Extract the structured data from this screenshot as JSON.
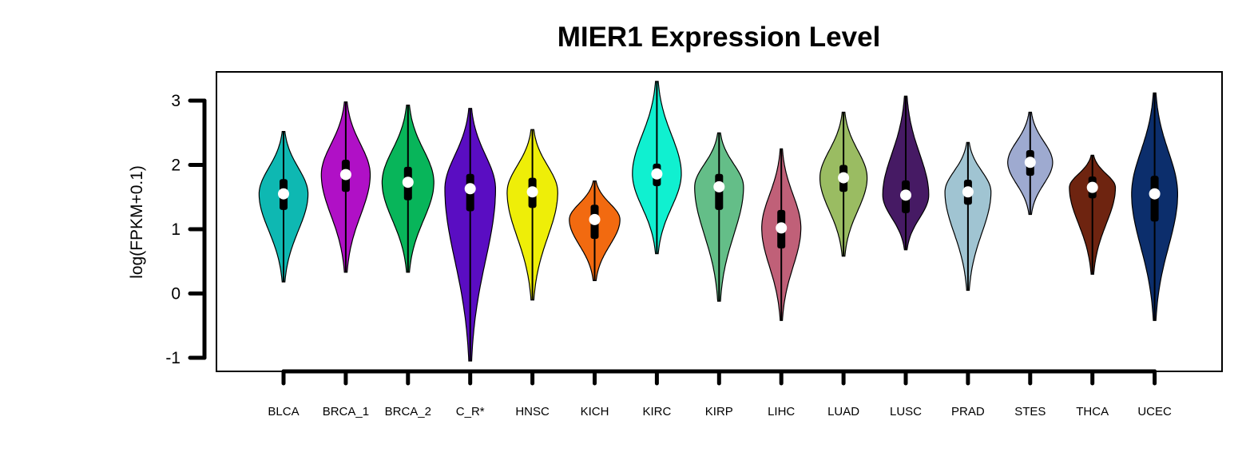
{
  "chart_data": {
    "type": "violin",
    "title": "MIER1 Expression Level",
    "xlabel": "",
    "ylabel": "log(FPKM+0.1)",
    "ylim": [
      -1.25,
      3.45
    ],
    "yticks": [
      -1,
      0,
      1,
      2,
      3
    ],
    "grid": false,
    "legend": "none",
    "categories": [
      "BLCA",
      "BRCA_1",
      "BRCA_2",
      "C_R*",
      "HNSC",
      "KICH",
      "KIRC",
      "KIRP",
      "LIHC",
      "LUAD",
      "LUSC",
      "PRAD",
      "STES",
      "THCA",
      "UCEC"
    ],
    "series": [
      {
        "values": [
          {
            "category": "BLCA",
            "color": "#0EB8B2",
            "min": 0.18,
            "max": 2.52,
            "q1": 1.3,
            "median": 1.55,
            "q3": 1.78,
            "mode": 1.55,
            "width": 0.85
          },
          {
            "category": "BRCA_1",
            "color": "#B010C6",
            "min": 0.33,
            "max": 2.98,
            "q1": 1.58,
            "median": 1.85,
            "q3": 2.08,
            "mode": 1.85,
            "width": 0.85
          },
          {
            "category": "BRCA_2",
            "color": "#08B55A",
            "min": 0.33,
            "max": 2.93,
            "q1": 1.45,
            "median": 1.73,
            "q3": 1.97,
            "mode": 1.73,
            "width": 0.9
          },
          {
            "category": "C_R*",
            "color": "#5A0DC2",
            "min": -1.05,
            "max": 2.88,
            "q1": 1.28,
            "median": 1.63,
            "q3": 1.86,
            "mode": 1.63,
            "width": 0.88
          },
          {
            "category": "HNSC",
            "color": "#EEEE08",
            "min": -0.1,
            "max": 2.55,
            "q1": 1.33,
            "median": 1.58,
            "q3": 1.8,
            "mode": 1.58,
            "width": 0.88
          },
          {
            "category": "KICH",
            "color": "#F26A10",
            "min": 0.2,
            "max": 1.75,
            "q1": 0.85,
            "median": 1.15,
            "q3": 1.38,
            "mode": 1.15,
            "width": 0.88
          },
          {
            "category": "KIRC",
            "color": "#10F0D0",
            "min": 0.62,
            "max": 3.3,
            "q1": 1.67,
            "median": 1.86,
            "q3": 2.02,
            "mode": 1.86,
            "width": 0.85
          },
          {
            "category": "KIRP",
            "color": "#64BE88",
            "min": -0.12,
            "max": 2.5,
            "q1": 1.3,
            "median": 1.66,
            "q3": 1.86,
            "mode": 1.66,
            "width": 0.85
          },
          {
            "category": "LIHC",
            "color": "#C06078",
            "min": -0.42,
            "max": 2.25,
            "q1": 0.7,
            "median": 1.02,
            "q3": 1.3,
            "mode": 1.02,
            "width": 0.68
          },
          {
            "category": "LUAD",
            "color": "#9ABC62",
            "min": 0.58,
            "max": 2.82,
            "q1": 1.58,
            "median": 1.8,
            "q3": 2.0,
            "mode": 1.8,
            "width": 0.82
          },
          {
            "category": "LUSC",
            "color": "#461A64",
            "min": 0.68,
            "max": 3.07,
            "q1": 1.25,
            "median": 1.53,
            "q3": 1.76,
            "mode": 1.53,
            "width": 0.8
          },
          {
            "category": "PRAD",
            "color": "#A0C4D2",
            "min": 0.05,
            "max": 2.35,
            "q1": 1.38,
            "median": 1.58,
            "q3": 1.77,
            "mode": 1.58,
            "width": 0.8
          },
          {
            "category": "STES",
            "color": "#9EAAD0",
            "min": 1.23,
            "max": 2.82,
            "q1": 1.83,
            "median": 2.04,
            "q3": 2.23,
            "mode": 2.04,
            "width": 0.78
          },
          {
            "category": "THCA",
            "color": "#6E2410",
            "min": 0.3,
            "max": 2.15,
            "q1": 1.48,
            "median": 1.65,
            "q3": 1.82,
            "mode": 1.65,
            "width": 0.8
          },
          {
            "category": "UCEC",
            "color": "#0C2E6C",
            "min": -0.42,
            "max": 3.12,
            "q1": 1.12,
            "median": 1.55,
            "q3": 1.83,
            "mode": 1.55,
            "width": 0.8
          }
        ]
      }
    ]
  }
}
